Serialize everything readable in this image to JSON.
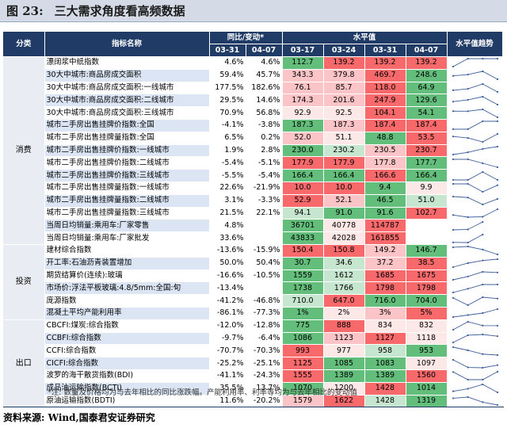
{
  "figure": {
    "label": "图 23:",
    "title": "三大需求角度看高频数据"
  },
  "headers": {
    "category": "分类",
    "indicator": "指标名称",
    "yoy_group": "同比/变动*",
    "level_group": "水平值",
    "trend": "水平值趋势",
    "yoy_dates": [
      "03-31",
      "04-07"
    ],
    "level_dates": [
      "03-17",
      "03-24",
      "03-31",
      "04-07"
    ]
  },
  "colors": {
    "green": "#63be7b",
    "light_green": "#c7e6cf",
    "red": "#f8696b",
    "light_red": "#fbc4c6",
    "pale": "#fde8e8",
    "trend_line": "#3f5f9a"
  },
  "categories": [
    {
      "name": "消费",
      "rows": [
        {
          "name": "漂阔浆中纸指数",
          "yoy": [
            "4.6%",
            "4.6%"
          ],
          "levels": [
            "112.7",
            "139.2",
            "139.2",
            "139.2"
          ],
          "colors": [
            "green",
            "red",
            "red",
            "red"
          ]
        },
        {
          "name": "30大中城市:商品房成交面积",
          "yoy": [
            "59.4%",
            "45.7%"
          ],
          "levels": [
            "343.3",
            "379.8",
            "469.7",
            "248.6"
          ],
          "colors": [
            "light_red",
            "light_red",
            "red",
            "green"
          ]
        },
        {
          "name": "30大中城市:商品房成交面积:一线城市",
          "yoy": [
            "177.5%",
            "182.6%"
          ],
          "levels": [
            "76.1",
            "85.7",
            "118.0",
            "64.9"
          ],
          "colors": [
            "light_red",
            "light_red",
            "red",
            "green"
          ]
        },
        {
          "name": "30大中城市:商品房成交面积:二线城市",
          "yoy": [
            "29.5%",
            "14.6%"
          ],
          "levels": [
            "174.3",
            "201.6",
            "247.9",
            "129.6"
          ],
          "colors": [
            "light_red",
            "light_red",
            "red",
            "green"
          ]
        },
        {
          "name": "30大中城市:商品房成交面积:三线城市",
          "yoy": [
            "70.9%",
            "56.8%"
          ],
          "levels": [
            "92.9",
            "92.5",
            "104.1",
            "54.1"
          ],
          "colors": [
            "pale",
            "pale",
            "red",
            "green"
          ]
        },
        {
          "name": "城市二手房出售挂牌价指数:全国",
          "yoy": [
            "-4.1%",
            "-3.8%"
          ],
          "levels": [
            "187.3",
            "187.3",
            "187.4",
            "187.4"
          ],
          "colors": [
            "green",
            "light_red",
            "red",
            "red"
          ]
        },
        {
          "name": "城市二手房出售挂牌量指数:全国",
          "yoy": [
            "6.5%",
            "0.2%"
          ],
          "levels": [
            "52.0",
            "51.1",
            "48.8",
            "53.5"
          ],
          "colors": [
            "light_red",
            "pale",
            "green",
            "red"
          ]
        },
        {
          "name": "城市二手房出售挂牌价指数:一线城市",
          "yoy": [
            "1.9%",
            "2.8%"
          ],
          "levels": [
            "230.0",
            "230.2",
            "230.5",
            "230.7"
          ],
          "colors": [
            "green",
            "light_green",
            "light_red",
            "red"
          ]
        },
        {
          "name": "城市二手房出售挂牌价指数:二线城市",
          "yoy": [
            "-5.4%",
            "-5.1%"
          ],
          "levels": [
            "177.9",
            "177.9",
            "177.8",
            "177.7"
          ],
          "colors": [
            "red",
            "red",
            "light_red",
            "green"
          ]
        },
        {
          "name": "城市二手房出售挂牌价指数:三线城市",
          "yoy": [
            "-5.5%",
            "-5.4%"
          ],
          "levels": [
            "166.4",
            "166.4",
            "166.6",
            "166.4"
          ],
          "colors": [
            "green",
            "green",
            "red",
            "green"
          ]
        },
        {
          "name": "城市二手房出售挂牌量指数:一线城市",
          "yoy": [
            "22.6%",
            "-21.9%"
          ],
          "levels": [
            "10.0",
            "10.0",
            "9.4",
            "9.9"
          ],
          "colors": [
            "red",
            "red",
            "green",
            "pale"
          ]
        },
        {
          "name": "城市二手房出售挂牌量指数:二线城市",
          "yoy": [
            "3.1%",
            "-3.3%"
          ],
          "levels": [
            "52.9",
            "52.1",
            "46.5",
            "51.0"
          ],
          "colors": [
            "red",
            "light_red",
            "green",
            "light_green"
          ]
        },
        {
          "name": "城市二手房出售挂牌量指数:三线城市",
          "yoy": [
            "21.5%",
            "22.1%"
          ],
          "levels": [
            "94.1",
            "91.0",
            "91.6",
            "102.7"
          ],
          "colors": [
            "light_green",
            "green",
            "green",
            "red"
          ]
        },
        {
          "name": "当周日均销量:乘用车:厂家零售",
          "yoy": [
            "4.8%",
            ""
          ],
          "levels": [
            "36701",
            "40778",
            "114787",
            ""
          ],
          "colors": [
            "green",
            "pale",
            "red",
            "none"
          ]
        },
        {
          "name": "当周日均销量:乘用车:厂家批发",
          "yoy": [
            "33.6%",
            ""
          ],
          "levels": [
            "43833",
            "42028",
            "161855",
            ""
          ],
          "colors": [
            "green",
            "pale",
            "red",
            "none"
          ]
        }
      ]
    },
    {
      "name": "投资",
      "rows": [
        {
          "name": "建材综合指数",
          "yoy": [
            "-13.6%",
            "-15.9%"
          ],
          "levels": [
            "150.4",
            "150.8",
            "149.2",
            "146.7"
          ],
          "colors": [
            "red",
            "red",
            "light_red",
            "green"
          ]
        },
        {
          "name": "开工率:石油沥青装置增加",
          "yoy": [
            "50.0%",
            "50.4%"
          ],
          "levels": [
            "30.7",
            "34.6",
            "37.2",
            "38.5"
          ],
          "colors": [
            "green",
            "light_green",
            "light_red",
            "red"
          ]
        },
        {
          "name": "期货结算价(连续):玻璃",
          "yoy": [
            "-16.6%",
            "-10.5%"
          ],
          "levels": [
            "1559",
            "1612",
            "1685",
            "1675"
          ],
          "colors": [
            "green",
            "light_green",
            "red",
            "red"
          ]
        },
        {
          "name": "市场价:浮法平板玻璃:4.8/5mm:全国:旬",
          "yoy": [
            "-13.4%",
            ""
          ],
          "levels": [
            "1738",
            "1766",
            "1798",
            "1798"
          ],
          "colors": [
            "green",
            "light_green",
            "red",
            "red"
          ]
        },
        {
          "name": "庞源指数",
          "yoy": [
            "-41.2%",
            "-46.8%"
          ],
          "levels": [
            "710.0",
            "647.0",
            "716.0",
            "704.0"
          ],
          "colors": [
            "light_green",
            "red",
            "green",
            "green"
          ]
        },
        {
          "name": "混凝土平均产能利用率",
          "yoy": [
            "-86.1%",
            "-77.3%"
          ],
          "levels": [
            "1%",
            "2%",
            "3%",
            "5%"
          ],
          "colors": [
            "green",
            "pale",
            "light_red",
            "red"
          ]
        }
      ]
    },
    {
      "name": "出口",
      "rows": [
        {
          "name": "CBCFI:煤炭:综合指数",
          "yoy": [
            "-12.0%",
            "-12.8%"
          ],
          "levels": [
            "775",
            "888",
            "834",
            "832"
          ],
          "colors": [
            "green",
            "red",
            "pale",
            "pale"
          ]
        },
        {
          "name": "CCBFI:综合指数",
          "yoy": [
            "-9.7%",
            "-6.4%"
          ],
          "levels": [
            "1086",
            "1123",
            "1127",
            "1118"
          ],
          "colors": [
            "green",
            "light_red",
            "red",
            "pale"
          ]
        },
        {
          "name": "CCFI:综合指数",
          "yoy": [
            "-70.7%",
            "-70.3%"
          ],
          "levels": [
            "993",
            "977",
            "958",
            "953"
          ],
          "colors": [
            "red",
            "pale",
            "light_green",
            "green"
          ]
        },
        {
          "name": "CICFI:综合指数",
          "yoy": [
            "-25.2%",
            "-25.1%"
          ],
          "levels": [
            "1125",
            "1085",
            "1083",
            "1097"
          ],
          "colors": [
            "red",
            "green",
            "green",
            "pale"
          ]
        },
        {
          "name": "波罗的海干散货指数(BDI)",
          "yoy": [
            "-41.1%",
            "-24.3%"
          ],
          "levels": [
            "1555",
            "1389",
            "1389",
            "1560"
          ],
          "colors": [
            "red",
            "green",
            "green",
            "red"
          ]
        },
        {
          "name": "成品油运输指数(BCTI)",
          "yoy": [
            "35.5%",
            "13.7%"
          ],
          "levels": [
            "1070",
            "1200",
            "1428",
            "1014"
          ],
          "colors": [
            "green",
            "pale",
            "red",
            "green"
          ]
        },
        {
          "name": "原油运输指数(BDTI)",
          "yoy": [
            "11.6%",
            "-20.2%"
          ],
          "levels": [
            "1579",
            "1622",
            "1428",
            "1319"
          ],
          "colors": [
            "light_red",
            "red",
            "light_green",
            "green"
          ]
        }
      ]
    }
  ],
  "note": "*注: 数量及价格均为与去年相比的同比涨跌幅。产能利用率、利率等均为与去年相比的变动值",
  "source": "资料来源: Wind,国泰君安证券研究"
}
